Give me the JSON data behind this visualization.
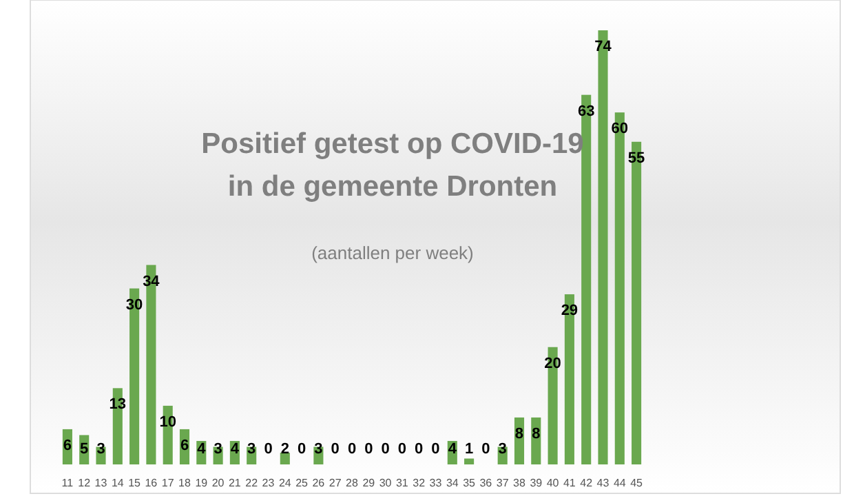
{
  "chart_data": {
    "type": "bar",
    "title": "Positief getest op COVID-19\nin de gemeente Dronten",
    "subtitle": "(aantallen per week)",
    "categories": [
      "11",
      "12",
      "13",
      "14",
      "15",
      "16",
      "17",
      "18",
      "19",
      "20",
      "21",
      "22",
      "23",
      "24",
      "25",
      "26",
      "27",
      "28",
      "29",
      "30",
      "31",
      "32",
      "33",
      "34",
      "35",
      "36",
      "37",
      "38",
      "39",
      "40",
      "41",
      "42",
      "43",
      "44",
      "45"
    ],
    "values": [
      6,
      5,
      3,
      13,
      30,
      34,
      10,
      6,
      4,
      3,
      4,
      3,
      0,
      2,
      0,
      3,
      0,
      0,
      0,
      0,
      0,
      0,
      0,
      4,
      1,
      0,
      3,
      8,
      8,
      20,
      29,
      63,
      74,
      60,
      55
    ],
    "color": "#6aa84f",
    "data_labels": true
  }
}
